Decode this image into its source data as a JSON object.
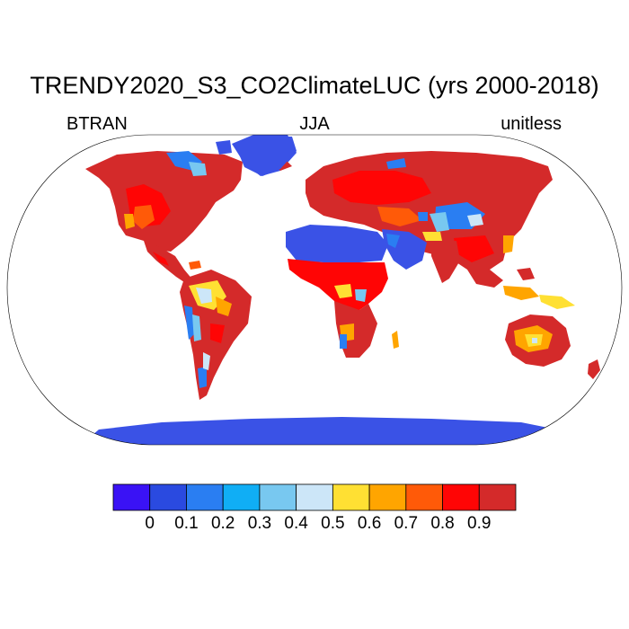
{
  "header": {
    "title": "TRENDY2020_S3_CO2ClimateLUC (yrs 2000-2018)",
    "left_label": "BTRAN",
    "center_label": "JJA",
    "right_label": "unitless"
  },
  "map": {
    "projection": "Robinson",
    "variable": "BTRAN",
    "season": "JJA",
    "units": "unitless"
  },
  "colorbar": {
    "tick_labels": [
      "0",
      "0.1",
      "0.2",
      "0.3",
      "0.4",
      "0.5",
      "0.6",
      "0.7",
      "0.8",
      "0.9"
    ],
    "colors": [
      "#3a12f5",
      "#2a4ae0",
      "#2a7ef2",
      "#10aef5",
      "#78c8f0",
      "#cce6f8",
      "#ffe033",
      "#ffa500",
      "#ff5a08",
      "#ff0505",
      "#d42a2a"
    ]
  },
  "colors": {
    "ocean": "#ffffff",
    "ice": "#3a52e6"
  }
}
